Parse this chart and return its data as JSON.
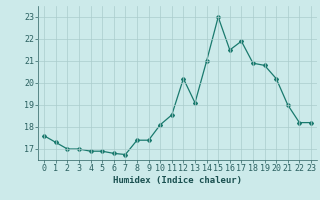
{
  "x": [
    0,
    1,
    2,
    3,
    4,
    5,
    6,
    7,
    8,
    9,
    10,
    11,
    12,
    13,
    14,
    15,
    16,
    17,
    18,
    19,
    20,
    21,
    22,
    23
  ],
  "y": [
    17.6,
    17.3,
    17.0,
    17.0,
    16.9,
    16.9,
    16.8,
    16.75,
    17.4,
    17.4,
    18.1,
    18.55,
    20.2,
    19.1,
    21.0,
    23.0,
    21.5,
    21.9,
    20.9,
    20.8,
    20.2,
    19.0,
    18.2,
    18.2
  ],
  "line_color": "#1a7a6e",
  "marker": "D",
  "marker_size": 2.0,
  "linewidth": 0.9,
  "xlabel": "Humidex (Indice chaleur)",
  "ylim": [
    16.5,
    23.5
  ],
  "yticks": [
    17,
    18,
    19,
    20,
    21,
    22,
    23
  ],
  "xticks": [
    0,
    1,
    2,
    3,
    4,
    5,
    6,
    7,
    8,
    9,
    10,
    11,
    12,
    13,
    14,
    15,
    16,
    17,
    18,
    19,
    20,
    21,
    22,
    23
  ],
  "bg_color": "#cceaea",
  "grid_color": "#aacccc",
  "xlabel_fontsize": 6.5,
  "tick_fontsize": 6.0
}
